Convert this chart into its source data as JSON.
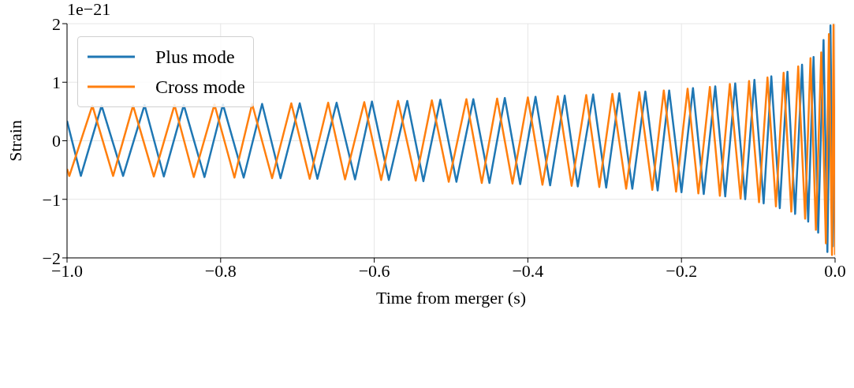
{
  "chart_data": {
    "type": "line",
    "xlabel": "Time from merger (s)",
    "ylabel": "Strain",
    "annotations": [
      "1e−21"
    ],
    "xlim": [
      -1.0,
      0.0
    ],
    "xticks": [
      {
        "value": -1.0,
        "label": "−1.0"
      },
      {
        "value": -0.8,
        "label": "−0.8"
      },
      {
        "value": -0.6,
        "label": "−0.6"
      },
      {
        "value": -0.4,
        "label": "−0.4"
      },
      {
        "value": -0.2,
        "label": "−0.2"
      },
      {
        "value": 0.0,
        "label": "0.0"
      }
    ],
    "ylim": [
      -2,
      2
    ],
    "yticks": [
      {
        "value": -2,
        "label": "−2"
      },
      {
        "value": -1,
        "label": "−1"
      },
      0,
      1,
      2
    ],
    "grid": true,
    "legend": "top left",
    "marker": "none",
    "line_style": "solid",
    "series": [
      {
        "name": "Plus mode",
        "color": "#1f77b4",
        "x": [
          -1.0,
          -0.982,
          -0.955,
          -0.927,
          -0.899,
          -0.874,
          -0.848,
          -0.821,
          -0.797,
          -0.77,
          -0.746,
          -0.722,
          -0.697,
          -0.674,
          -0.649,
          -0.625,
          -0.603,
          -0.581,
          -0.557,
          -0.536,
          -0.514,
          -0.493,
          -0.471,
          -0.45,
          -0.43,
          -0.41,
          -0.39,
          -0.371,
          -0.352,
          -0.335,
          -0.315,
          -0.298,
          -0.281,
          -0.264,
          -0.247,
          -0.231,
          -0.216,
          -0.2,
          -0.185,
          -0.171,
          -0.156,
          -0.143,
          -0.13,
          -0.117,
          -0.105,
          -0.093,
          -0.083,
          -0.072,
          -0.062,
          -0.052,
          -0.043,
          -0.035,
          -0.028,
          -0.022,
          -0.015,
          -0.01,
          -0.006,
          -0.003,
          0.0
        ],
        "values": [
          0.34,
          -0.6,
          0.6,
          -0.6,
          0.61,
          -0.61,
          0.61,
          -0.62,
          0.62,
          -0.63,
          0.63,
          -0.64,
          0.64,
          -0.65,
          0.65,
          -0.66,
          0.67,
          -0.67,
          0.68,
          -0.69,
          0.7,
          -0.7,
          0.71,
          -0.72,
          0.73,
          -0.74,
          0.75,
          -0.76,
          0.77,
          -0.78,
          0.79,
          -0.8,
          0.81,
          -0.82,
          0.84,
          -0.85,
          0.86,
          -0.88,
          0.9,
          -0.91,
          0.93,
          -0.95,
          0.98,
          -1.0,
          1.04,
          -1.07,
          1.1,
          -1.15,
          1.18,
          -1.25,
          1.3,
          -1.38,
          1.43,
          -1.57,
          1.72,
          -1.9,
          1.97,
          -1.8,
          0.0
        ]
      },
      {
        "name": "Cross mode",
        "color": "#ff7f0e",
        "x": [
          -1.0,
          -0.997,
          -0.967,
          -0.94,
          -0.914,
          -0.887,
          -0.86,
          -0.835,
          -0.808,
          -0.782,
          -0.759,
          -0.733,
          -0.708,
          -0.684,
          -0.66,
          -0.638,
          -0.613,
          -0.591,
          -0.569,
          -0.546,
          -0.525,
          -0.503,
          -0.48,
          -0.46,
          -0.44,
          -0.42,
          -0.4,
          -0.381,
          -0.361,
          -0.343,
          -0.324,
          -0.307,
          -0.29,
          -0.272,
          -0.255,
          -0.238,
          -0.223,
          -0.207,
          -0.192,
          -0.178,
          -0.163,
          -0.15,
          -0.137,
          -0.123,
          -0.112,
          -0.099,
          -0.088,
          -0.077,
          -0.067,
          -0.057,
          -0.048,
          -0.039,
          -0.032,
          -0.025,
          -0.018,
          -0.012,
          -0.008,
          -0.004,
          -0.002,
          0.0
        ],
        "values": [
          -0.48,
          -0.6,
          0.6,
          -0.6,
          0.6,
          -0.61,
          0.61,
          -0.62,
          0.62,
          -0.63,
          0.63,
          -0.64,
          0.64,
          -0.65,
          0.65,
          -0.66,
          0.66,
          -0.67,
          0.68,
          -0.68,
          0.69,
          -0.7,
          0.71,
          -0.72,
          0.72,
          -0.73,
          0.74,
          -0.75,
          0.76,
          -0.77,
          0.78,
          -0.79,
          0.8,
          -0.82,
          0.83,
          -0.84,
          0.86,
          -0.87,
          0.89,
          -0.9,
          0.92,
          -0.94,
          0.97,
          -0.99,
          1.02,
          -1.05,
          1.08,
          -1.12,
          1.16,
          -1.21,
          1.27,
          -1.33,
          1.41,
          -1.52,
          1.51,
          -1.75,
          1.82,
          -1.95,
          1.98,
          -1.95
        ]
      }
    ]
  }
}
